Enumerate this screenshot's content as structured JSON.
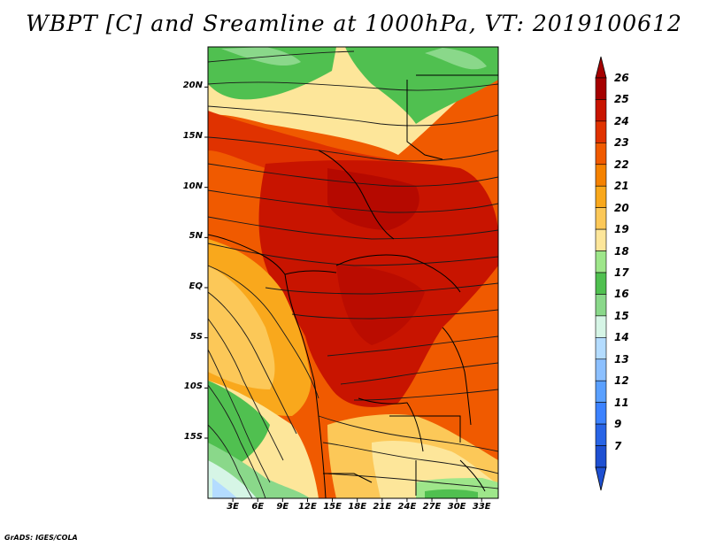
{
  "title": "WBPT [C] and Sreamline at 1000hPa, VT: 2019100612",
  "footer": "GrADS: IGES/COLA",
  "map": {
    "lat_range": [
      -21,
      24
    ],
    "lon_range": [
      0,
      35
    ],
    "lat_ticks": [
      {
        "label": "20N",
        "value": 20
      },
      {
        "label": "15N",
        "value": 15
      },
      {
        "label": "10N",
        "value": 10
      },
      {
        "label": "5N",
        "value": 5
      },
      {
        "label": "EQ",
        "value": 0
      },
      {
        "label": "5S",
        "value": -5
      },
      {
        "label": "10S",
        "value": -10
      },
      {
        "label": "15S",
        "value": -15
      }
    ],
    "lon_ticks": [
      {
        "label": "3E",
        "value": 3
      },
      {
        "label": "6E",
        "value": 6
      },
      {
        "label": "9E",
        "value": 9
      },
      {
        "label": "12E",
        "value": 12
      },
      {
        "label": "15E",
        "value": 15
      },
      {
        "label": "18E",
        "value": 18
      },
      {
        "label": "21E",
        "value": 21
      },
      {
        "label": "24E",
        "value": 24
      },
      {
        "label": "27E",
        "value": 27
      },
      {
        "label": "30E",
        "value": 30
      },
      {
        "label": "33E",
        "value": 33
      }
    ]
  },
  "colorbar": {
    "labels": [
      "26",
      "25",
      "24",
      "23",
      "22",
      "21",
      "20",
      "19",
      "18",
      "17",
      "16",
      "15",
      "14",
      "13",
      "12",
      "11",
      "9",
      "7"
    ],
    "colors": [
      "#a50000",
      "#c81400",
      "#e03200",
      "#f05a00",
      "#f58200",
      "#f9a81c",
      "#fcc858",
      "#fde69a",
      "#9ee68a",
      "#50c050",
      "#8ad88a",
      "#d6f5e6",
      "#b4dcff",
      "#8cc0ff",
      "#5aa0ff",
      "#3c82ff",
      "#2864e6",
      "#1e50d2"
    ],
    "top_arrow_color": "#a50000",
    "bottom_arrow_color": "#1e50d2"
  }
}
